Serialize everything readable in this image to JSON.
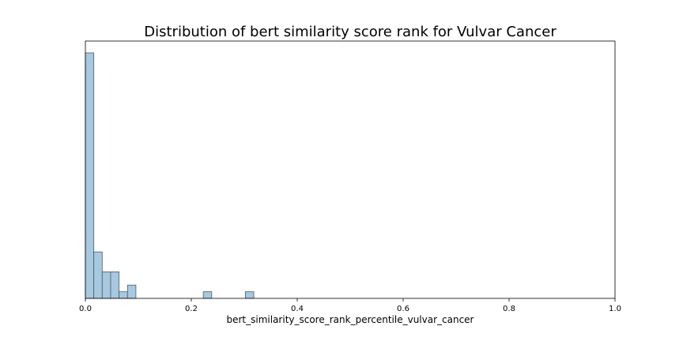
{
  "chart_data": {
    "type": "bar",
    "title": "Distribution of bert similarity score rank for Vulvar Cancer",
    "xlabel": "bert_similarity_score_rank_percentile_vulvar_cancer",
    "ylabel": "",
    "xlim": [
      0.0,
      1.0
    ],
    "ylim": [
      0,
      37
    ],
    "grid": false,
    "show_y_ticks": false,
    "x_ticks": [
      0.0,
      0.2,
      0.4,
      0.6,
      0.8,
      1.0
    ],
    "x_tick_labels": [
      "0.0",
      "0.2",
      "0.4",
      "0.6",
      "0.8",
      "1.0"
    ],
    "bin_width": 0.0159,
    "bins": [
      {
        "x": 0.0,
        "count": 37
      },
      {
        "x": 0.0159,
        "count": 7
      },
      {
        "x": 0.0318,
        "count": 4
      },
      {
        "x": 0.0477,
        "count": 4
      },
      {
        "x": 0.0636,
        "count": 1
      },
      {
        "x": 0.0795,
        "count": 2
      },
      {
        "x": 0.2226,
        "count": 1
      },
      {
        "x": 0.3021,
        "count": 1
      }
    ],
    "colors": {
      "bar_fill": "#a6c8e0",
      "bar_edge": "#505a60",
      "axis": "#000000"
    }
  }
}
